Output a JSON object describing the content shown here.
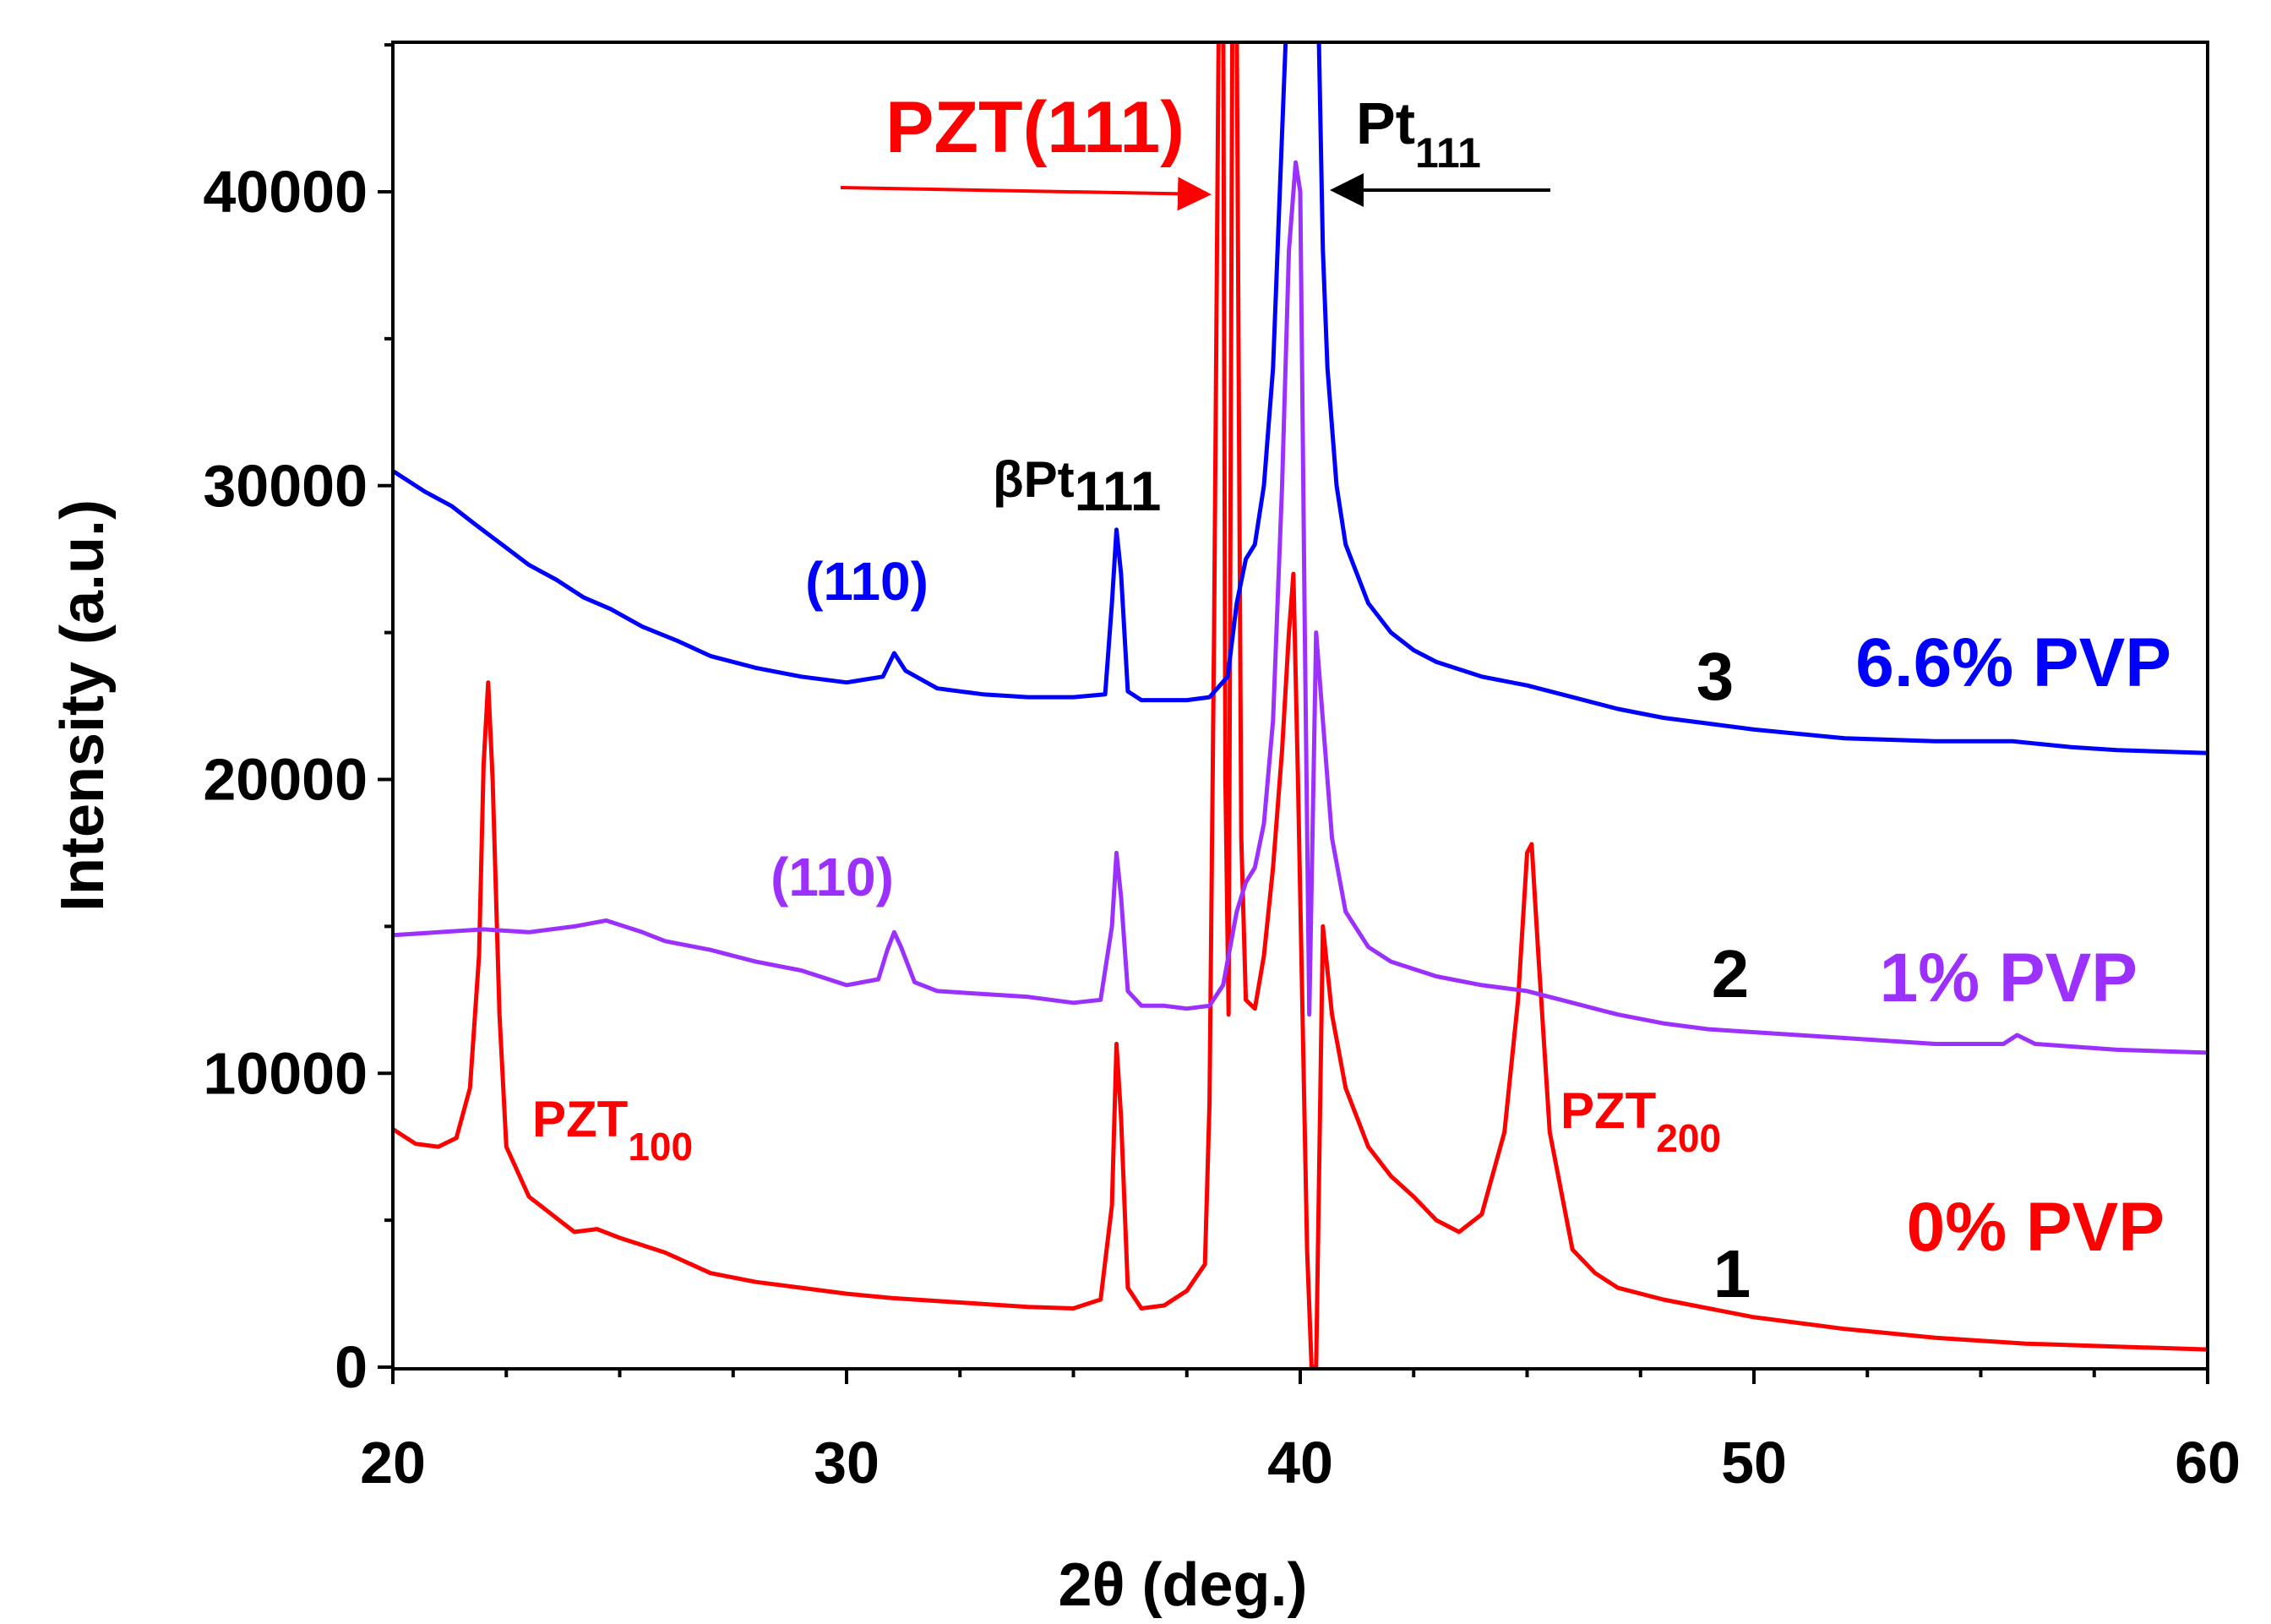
{
  "chart_data": {
    "type": "line",
    "title": "",
    "xlabel": "2θ (deg.)",
    "ylabel": "Intensity (a.u.)",
    "xlim": [
      20,
      60
    ],
    "ylim": [
      0,
      45000
    ],
    "x_ticks": [
      20,
      30,
      40,
      50,
      60
    ],
    "x_tick_labels": [
      "20",
      "30",
      "40",
      "50",
      "60"
    ],
    "y_ticks": [
      0,
      10000,
      20000,
      30000,
      40000
    ],
    "y_tick_labels": [
      "0",
      "10000",
      "20000",
      "30000",
      "40000"
    ],
    "grid": false,
    "colors": {
      "0% PVP": "#ff0000",
      "1% PVP": "#9b30ff",
      "6.6% PVP": "#0000ff",
      "text": "#000000"
    },
    "series": [
      {
        "name": "0% PVP",
        "curve_number": "1",
        "color": "#ff0000",
        "points": [
          [
            20,
            8100
          ],
          [
            20.5,
            7600
          ],
          [
            21,
            7500
          ],
          [
            21.4,
            7800
          ],
          [
            21.7,
            9500
          ],
          [
            21.9,
            14000
          ],
          [
            22.0,
            20500
          ],
          [
            22.1,
            23300
          ],
          [
            22.2,
            20000
          ],
          [
            22.35,
            12000
          ],
          [
            22.5,
            7500
          ],
          [
            23,
            5800
          ],
          [
            23.5,
            5200
          ],
          [
            24,
            4600
          ],
          [
            24.5,
            4700
          ],
          [
            25,
            4400
          ],
          [
            26,
            3900
          ],
          [
            27,
            3200
          ],
          [
            28,
            2900
          ],
          [
            29,
            2700
          ],
          [
            30,
            2500
          ],
          [
            31,
            2350
          ],
          [
            32,
            2250
          ],
          [
            33,
            2150
          ],
          [
            34,
            2050
          ],
          [
            35,
            2000
          ],
          [
            35.6,
            2300
          ],
          [
            35.85,
            5500
          ],
          [
            35.95,
            11000
          ],
          [
            36.05,
            8500
          ],
          [
            36.2,
            2700
          ],
          [
            36.5,
            2000
          ],
          [
            37,
            2100
          ],
          [
            37.5,
            2600
          ],
          [
            37.9,
            3500
          ],
          [
            38.0,
            9000
          ],
          [
            38.1,
            25000
          ],
          [
            38.2,
            45000
          ],
          [
            38.3,
            48000
          ],
          [
            38.35,
            20000
          ],
          [
            38.42,
            12000
          ],
          [
            38.5,
            45000
          ],
          [
            38.6,
            46000
          ],
          [
            38.7,
            18000
          ],
          [
            38.8,
            12500
          ],
          [
            39.0,
            12200
          ],
          [
            39.2,
            14000
          ],
          [
            39.4,
            17000
          ],
          [
            39.6,
            21000
          ],
          [
            39.75,
            25000
          ],
          [
            39.85,
            27000
          ],
          [
            39.95,
            20000
          ],
          [
            40.05,
            12000
          ],
          [
            40.15,
            4000
          ],
          [
            40.25,
            0
          ],
          [
            40.35,
            0
          ],
          [
            40.5,
            15000
          ],
          [
            40.7,
            12000
          ],
          [
            41.0,
            9500
          ],
          [
            41.5,
            7500
          ],
          [
            42,
            6500
          ],
          [
            42.5,
            5800
          ],
          [
            43,
            5000
          ],
          [
            43.5,
            4600
          ],
          [
            44,
            5200
          ],
          [
            44.5,
            8000
          ],
          [
            44.8,
            12500
          ],
          [
            45.0,
            17500
          ],
          [
            45.1,
            17800
          ],
          [
            45.25,
            14000
          ],
          [
            45.5,
            8000
          ],
          [
            46,
            4000
          ],
          [
            46.5,
            3200
          ],
          [
            47,
            2700
          ],
          [
            48,
            2300
          ],
          [
            49,
            2000
          ],
          [
            50,
            1700
          ],
          [
            52,
            1300
          ],
          [
            54,
            1000
          ],
          [
            56,
            800
          ],
          [
            58,
            700
          ],
          [
            60,
            600
          ]
        ]
      },
      {
        "name": "1% PVP",
        "curve_number": "2",
        "color": "#9b30ff",
        "points": [
          [
            20,
            14700
          ],
          [
            21,
            14800
          ],
          [
            22,
            14900
          ],
          [
            23,
            14800
          ],
          [
            24,
            15000
          ],
          [
            24.7,
            15200
          ],
          [
            25.5,
            14800
          ],
          [
            26,
            14500
          ],
          [
            27,
            14200
          ],
          [
            28,
            13800
          ],
          [
            29,
            13500
          ],
          [
            30,
            13000
          ],
          [
            30.7,
            13200
          ],
          [
            30.9,
            14200
          ],
          [
            31.05,
            14800
          ],
          [
            31.2,
            14300
          ],
          [
            31.5,
            13100
          ],
          [
            32,
            12800
          ],
          [
            33,
            12700
          ],
          [
            34,
            12600
          ],
          [
            35,
            12400
          ],
          [
            35.6,
            12500
          ],
          [
            35.85,
            15000
          ],
          [
            35.95,
            17500
          ],
          [
            36.05,
            16000
          ],
          [
            36.2,
            12800
          ],
          [
            36.5,
            12300
          ],
          [
            37,
            12300
          ],
          [
            37.5,
            12200
          ],
          [
            38.0,
            12300
          ],
          [
            38.3,
            13000
          ],
          [
            38.6,
            15500
          ],
          [
            38.8,
            16500
          ],
          [
            39.0,
            17000
          ],
          [
            39.2,
            18500
          ],
          [
            39.4,
            22000
          ],
          [
            39.6,
            30000
          ],
          [
            39.75,
            38000
          ],
          [
            39.9,
            41000
          ],
          [
            40.0,
            40000
          ],
          [
            40.1,
            25000
          ],
          [
            40.2,
            12000
          ],
          [
            40.35,
            25000
          ],
          [
            40.5,
            22000
          ],
          [
            40.7,
            18000
          ],
          [
            41.0,
            15500
          ],
          [
            41.5,
            14300
          ],
          [
            42,
            13800
          ],
          [
            43,
            13300
          ],
          [
            44,
            13000
          ],
          [
            45,
            12800
          ],
          [
            46,
            12400
          ],
          [
            47,
            12000
          ],
          [
            48,
            11700
          ],
          [
            49,
            11500
          ],
          [
            50,
            11400
          ],
          [
            52,
            11200
          ],
          [
            54,
            11000
          ],
          [
            55.5,
            11000
          ],
          [
            55.8,
            11300
          ],
          [
            56.2,
            11000
          ],
          [
            58,
            10800
          ],
          [
            60,
            10700
          ]
        ]
      },
      {
        "name": "6.6% PVP",
        "curve_number": "3",
        "color": "#0000ff",
        "points": [
          [
            20,
            30500
          ],
          [
            20.7,
            29800
          ],
          [
            21.3,
            29300
          ],
          [
            21.8,
            28700
          ],
          [
            22.4,
            28000
          ],
          [
            23,
            27300
          ],
          [
            23.6,
            26800
          ],
          [
            24.2,
            26200
          ],
          [
            24.8,
            25800
          ],
          [
            25.5,
            25200
          ],
          [
            26.3,
            24700
          ],
          [
            27,
            24200
          ],
          [
            28,
            23800
          ],
          [
            29,
            23500
          ],
          [
            30,
            23300
          ],
          [
            30.8,
            23500
          ],
          [
            31.05,
            24300
          ],
          [
            31.3,
            23700
          ],
          [
            32,
            23100
          ],
          [
            33,
            22900
          ],
          [
            34,
            22800
          ],
          [
            35,
            22800
          ],
          [
            35.7,
            22900
          ],
          [
            35.85,
            26000
          ],
          [
            35.95,
            28500
          ],
          [
            36.05,
            27000
          ],
          [
            36.2,
            23000
          ],
          [
            36.5,
            22700
          ],
          [
            37,
            22700
          ],
          [
            37.5,
            22700
          ],
          [
            38.0,
            22800
          ],
          [
            38.4,
            23500
          ],
          [
            38.6,
            26000
          ],
          [
            38.8,
            27500
          ],
          [
            39.0,
            28000
          ],
          [
            39.2,
            30000
          ],
          [
            39.4,
            34000
          ],
          [
            39.55,
            40000
          ],
          [
            39.7,
            46000
          ],
          [
            40.4,
            46000
          ],
          [
            40.5,
            38000
          ],
          [
            40.6,
            34000
          ],
          [
            40.8,
            30000
          ],
          [
            41.0,
            28000
          ],
          [
            41.5,
            26000
          ],
          [
            42,
            25000
          ],
          [
            42.5,
            24400
          ],
          [
            43,
            24000
          ],
          [
            44,
            23500
          ],
          [
            45,
            23200
          ],
          [
            46,
            22800
          ],
          [
            47,
            22400
          ],
          [
            48,
            22100
          ],
          [
            49,
            21900
          ],
          [
            50,
            21700
          ],
          [
            52,
            21400
          ],
          [
            54,
            21300
          ],
          [
            55.7,
            21300
          ],
          [
            57,
            21100
          ],
          [
            58,
            21000
          ],
          [
            60,
            20900
          ]
        ]
      }
    ],
    "annotations": {
      "pzt111": "PZT(111)",
      "pt111_base": "Pt",
      "pt111_sub": "111",
      "beta_pt_base": "βPt",
      "beta_pt_sub": "111",
      "pzt110_blue": "(110)",
      "pzt110_purple": "(110)",
      "pzt100_base": "PZT",
      "pzt100_sub": "100",
      "pzt200_base": "PZT",
      "pzt200_sub": "200"
    }
  }
}
